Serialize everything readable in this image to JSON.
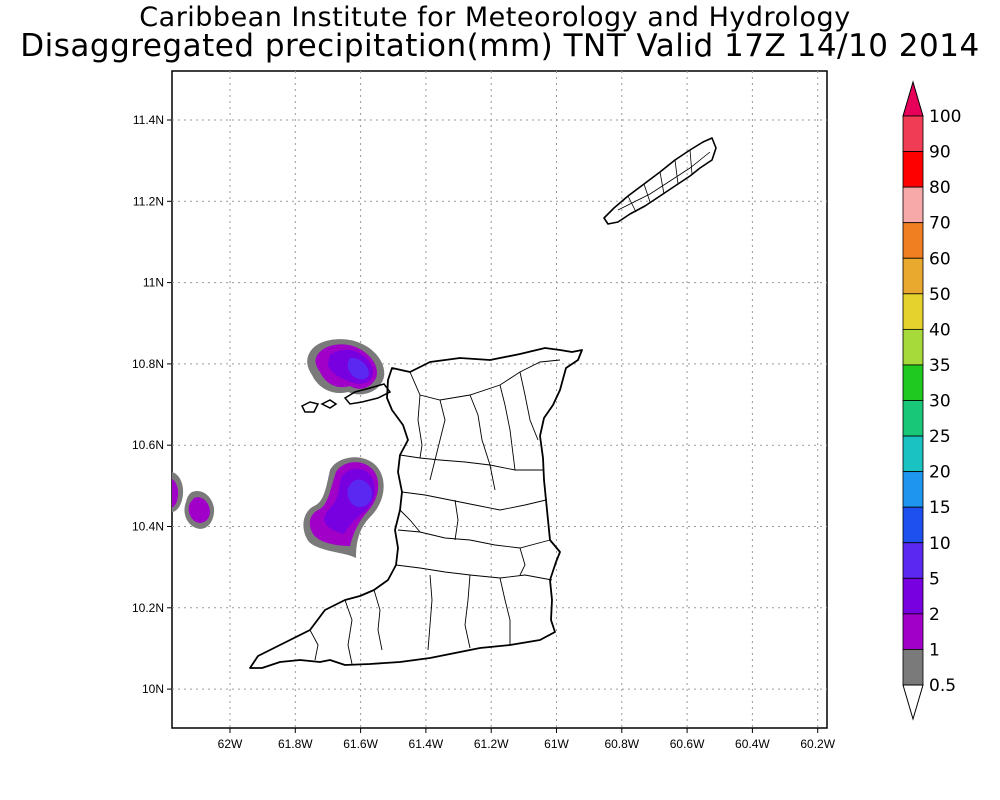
{
  "header": {
    "line1": "Caribbean Institute for Meteorology and Hydrology",
    "line2": "Disaggregated precipitation(mm) TNT Valid 17Z 14/10 2014"
  },
  "map": {
    "region": "Trinidad and Tobago",
    "x_ticks": [
      "62W",
      "61.8W",
      "61.6W",
      "61.4W",
      "61.2W",
      "61W",
      "60.8W",
      "60.6W",
      "60.4W",
      "60.2W"
    ],
    "y_ticks": [
      "11.4N",
      "11.2N",
      "11N",
      "10.8N",
      "10.6N",
      "10.4N",
      "10.2N",
      "10N"
    ],
    "grid": "dotted"
  },
  "colorbar": {
    "labels": [
      "100",
      "90",
      "80",
      "70",
      "60",
      "50",
      "40",
      "35",
      "30",
      "25",
      "20",
      "15",
      "10",
      "5",
      "2",
      "1",
      "0.5"
    ],
    "colors": [
      "#f03c55",
      "#ff0000",
      "#f7a8a8",
      "#f07f22",
      "#e8a92e",
      "#e6d22c",
      "#a6d93a",
      "#1fc91f",
      "#18c878",
      "#1ac2c2",
      "#1e96f0",
      "#1e50f0",
      "#5a28f0",
      "#7800e0",
      "#a000c8",
      "#7a7a7a"
    ],
    "top_arrow_color": "#e6005a",
    "bottom_arrow_color": "#ffffff"
  }
}
